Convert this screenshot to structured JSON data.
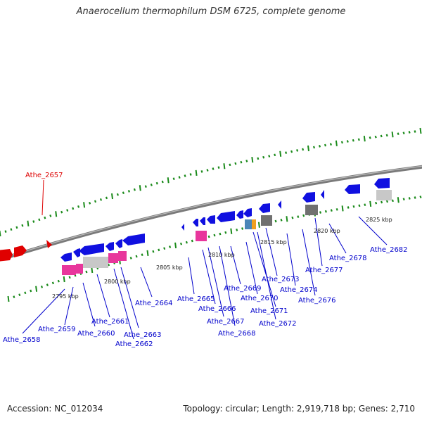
{
  "title": "Anaerocellum thermophilum DSM 6725, complete genome",
  "accession": "Accession: NC_012034",
  "summary": "Topology: circular; Length: 2,919,718 bp; Genes: 2,710",
  "colors": {
    "backbone": "#808080",
    "forward_gene": "#e00000",
    "reverse_gene": "#1010e0",
    "rna_feature": "#e8369c",
    "grey_feature": "#707070",
    "light_grey_feature": "#c8c8c8",
    "orange_feature": "#f0a020",
    "steel_feature": "#4a86b8",
    "tick": "#1a8a1a",
    "label": "#0000cc",
    "label_highlight": "#dd0000"
  },
  "scale_labels": [
    "2795 kbp",
    "2800 kbp",
    "2805 kbp",
    "2810 kbp",
    "2815 kbp",
    "2820 kbp",
    "2825 kbp"
  ],
  "gene_labels": [
    "Athe_2657",
    "Athe_2658",
    "Athe_2659",
    "Athe_2660",
    "Athe_2661",
    "Athe_2662",
    "Athe_2663",
    "Athe_2664",
    "Athe_2665",
    "Athe_2666",
    "Athe_2667",
    "Athe_2668",
    "Athe_2669",
    "Athe_2670",
    "Athe_2671",
    "Athe_2672",
    "Athe_2673",
    "Athe_2674",
    "Athe_2676",
    "Athe_2677",
    "Athe_2678",
    "Athe_2682"
  ]
}
